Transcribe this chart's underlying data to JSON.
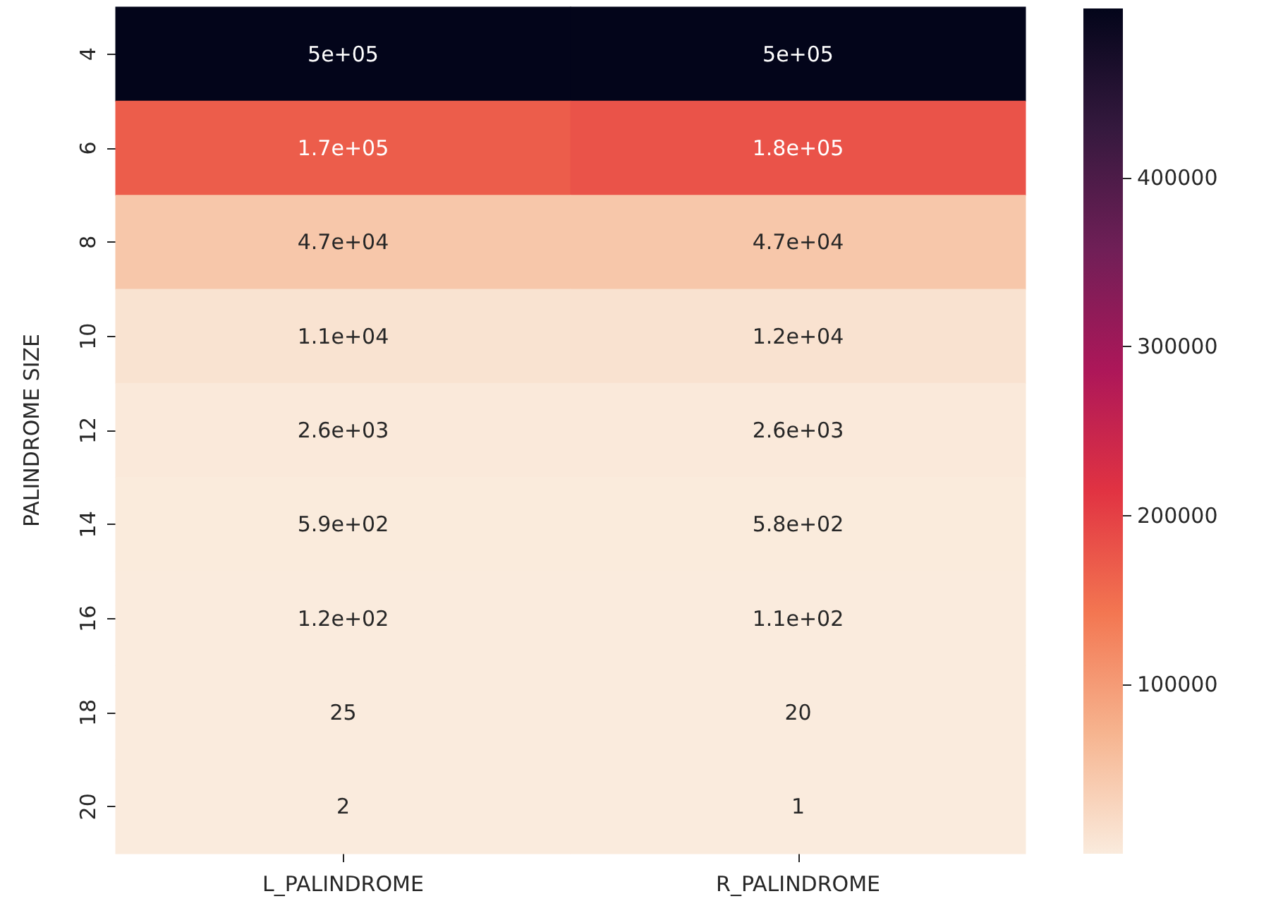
{
  "chart_data": {
    "type": "heatmap",
    "ylabel": "PALINDROME SIZE",
    "categories": [
      "L_PALINDROME",
      "R_PALINDROME"
    ],
    "y_categories": [
      "4",
      "6",
      "8",
      "10",
      "12",
      "14",
      "16",
      "18",
      "20"
    ],
    "cells": [
      [
        500000,
        500000
      ],
      [
        170000,
        180000
      ],
      [
        47000,
        47000
      ],
      [
        11000,
        12000
      ],
      [
        2600,
        2600
      ],
      [
        590,
        580
      ],
      [
        120,
        110
      ],
      [
        25,
        20
      ],
      [
        2,
        1
      ]
    ],
    "cell_labels": [
      [
        "5e+05",
        "5e+05"
      ],
      [
        "1.7e+05",
        "1.8e+05"
      ],
      [
        "4.7e+04",
        "4.7e+04"
      ],
      [
        "1.1e+04",
        "1.2e+04"
      ],
      [
        "2.6e+03",
        "2.6e+03"
      ],
      [
        "5.9e+02",
        "5.8e+02"
      ],
      [
        "1.2e+02",
        "1.1e+02"
      ],
      [
        "25",
        "20"
      ],
      [
        "2",
        "1"
      ]
    ],
    "clim": [
      1,
      500000
    ],
    "cticks": [
      100000,
      200000,
      300000,
      400000
    ]
  }
}
